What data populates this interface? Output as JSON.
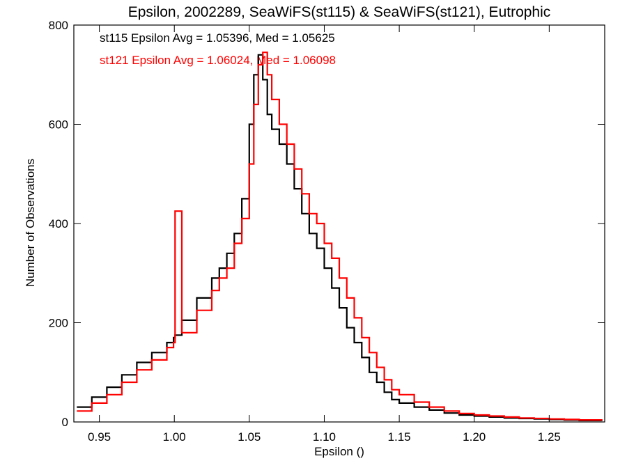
{
  "chart_data": {
    "type": "line",
    "title": "Epsilon, 2002289, SeaWiFS(st115) & SeaWiFS(st121), Eutrophic",
    "xlabel": "Epsilon ()",
    "ylabel": "Number of Observations",
    "xlim": [
      0.933,
      1.287
    ],
    "ylim": [
      0,
      800
    ],
    "xticks": [
      "0.95",
      "1.00",
      "1.05",
      "1.10",
      "1.15",
      "1.20",
      "1.25"
    ],
    "yticks": [
      "0",
      "200",
      "400",
      "600",
      "800"
    ],
    "grid": false,
    "annotations": [
      {
        "text": "st115 Epsilon Avg = 1.05396, Med = 1.05625",
        "color": "#000000"
      },
      {
        "text": "st121 Epsilon Avg = 1.06024, Med = 1.06098",
        "color": "#ff0000"
      }
    ],
    "x": [
      0.935,
      0.945,
      0.955,
      0.965,
      0.975,
      0.985,
      0.995,
      0.9995,
      1.0005,
      1.005,
      1.015,
      1.025,
      1.03,
      1.035,
      1.04,
      1.045,
      1.05,
      1.053,
      1.056,
      1.059,
      1.062,
      1.065,
      1.07,
      1.075,
      1.08,
      1.085,
      1.09,
      1.095,
      1.1,
      1.105,
      1.11,
      1.115,
      1.12,
      1.125,
      1.13,
      1.135,
      1.14,
      1.145,
      1.15,
      1.16,
      1.17,
      1.18,
      1.19,
      1.2,
      1.21,
      1.22,
      1.23,
      1.24,
      1.25,
      1.26,
      1.27,
      1.285
    ],
    "series": [
      {
        "color": "#000000",
        "values": [
          30,
          50,
          70,
          95,
          120,
          140,
          160,
          170,
          175,
          205,
          250,
          290,
          310,
          340,
          380,
          450,
          600,
          700,
          740,
          690,
          620,
          590,
          560,
          520,
          470,
          420,
          380,
          350,
          310,
          270,
          230,
          190,
          160,
          130,
          100,
          80,
          60,
          45,
          38,
          30,
          24,
          18,
          14,
          12,
          10,
          8,
          7,
          6,
          5,
          4,
          3,
          2
        ]
      },
      {
        "color": "#ff0000",
        "values": [
          22,
          38,
          55,
          80,
          105,
          125,
          150,
          160,
          425,
          180,
          225,
          265,
          290,
          310,
          360,
          410,
          520,
          640,
          720,
          745,
          700,
          650,
          600,
          560,
          510,
          460,
          420,
          400,
          360,
          330,
          290,
          250,
          210,
          170,
          140,
          110,
          85,
          65,
          55,
          40,
          30,
          22,
          17,
          14,
          12,
          10,
          8,
          7,
          6,
          5,
          4,
          3
        ]
      }
    ]
  }
}
